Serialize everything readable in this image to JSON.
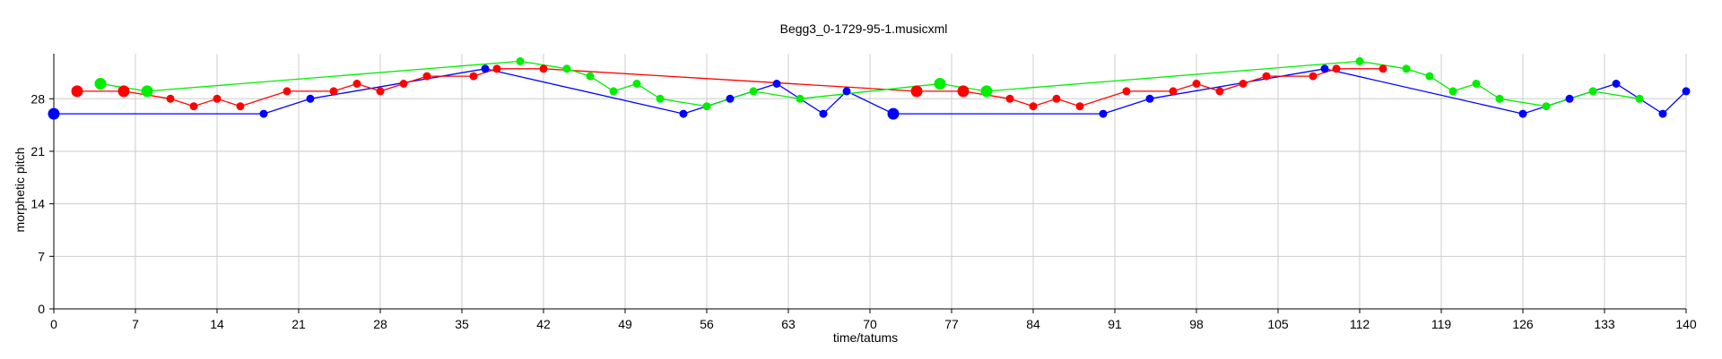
{
  "chart_data": {
    "type": "scatter",
    "title": "Begg3_0-1729-95-1.musicxml",
    "xlabel": "time/tatums",
    "ylabel": "morphetic pitch",
    "xlim": [
      0,
      140
    ],
    "ylim": [
      0,
      34
    ],
    "x_ticks": [
      0,
      7,
      14,
      21,
      28,
      35,
      42,
      49,
      56,
      63,
      70,
      77,
      84,
      91,
      98,
      105,
      112,
      119,
      126,
      133,
      140
    ],
    "y_ticks": [
      0,
      7,
      14,
      21,
      28
    ],
    "grid": true,
    "series": [
      {
        "color": "#0000ff",
        "points": [
          [
            0,
            26
          ],
          [
            18,
            26
          ],
          [
            22,
            28
          ],
          [
            37,
            32
          ],
          [
            54,
            26
          ],
          [
            58,
            28
          ],
          [
            62,
            30
          ],
          [
            66,
            26
          ],
          [
            68,
            29
          ],
          [
            72,
            26
          ],
          [
            90,
            26
          ],
          [
            94,
            28
          ],
          [
            109,
            32
          ],
          [
            126,
            26
          ],
          [
            130,
            28
          ],
          [
            134,
            30
          ],
          [
            138,
            26
          ],
          [
            140,
            29
          ]
        ],
        "big": [
          0,
          9
        ]
      },
      {
        "color": "#ff0000",
        "points": [
          [
            2,
            29
          ],
          [
            6,
            29
          ],
          [
            10,
            28
          ],
          [
            12,
            27
          ],
          [
            14,
            28
          ],
          [
            16,
            27
          ],
          [
            20,
            29
          ],
          [
            24,
            29
          ],
          [
            26,
            30
          ],
          [
            28,
            29
          ],
          [
            30,
            30
          ],
          [
            32,
            31
          ],
          [
            36,
            31
          ],
          [
            38,
            32
          ],
          [
            42,
            32
          ],
          [
            74,
            29
          ],
          [
            78,
            29
          ],
          [
            82,
            28
          ],
          [
            84,
            27
          ],
          [
            86,
            28
          ],
          [
            88,
            27
          ],
          [
            92,
            29
          ],
          [
            96,
            29
          ],
          [
            98,
            30
          ],
          [
            100,
            29
          ],
          [
            102,
            30
          ],
          [
            104,
            31
          ],
          [
            108,
            31
          ],
          [
            110,
            32
          ],
          [
            114,
            32
          ]
        ],
        "big": [
          0,
          1,
          15,
          16
        ]
      },
      {
        "color": "#00ee00",
        "points": [
          [
            4,
            30
          ],
          [
            8,
            29
          ],
          [
            40,
            33
          ],
          [
            44,
            32
          ],
          [
            46,
            31
          ],
          [
            48,
            29
          ],
          [
            50,
            30
          ],
          [
            52,
            28
          ],
          [
            56,
            27
          ],
          [
            60,
            29
          ],
          [
            64,
            28
          ],
          [
            76,
            30
          ],
          [
            80,
            29
          ],
          [
            112,
            33
          ],
          [
            116,
            32
          ],
          [
            118,
            31
          ],
          [
            120,
            29
          ],
          [
            122,
            30
          ],
          [
            124,
            28
          ],
          [
            128,
            27
          ],
          [
            132,
            29
          ],
          [
            136,
            28
          ]
        ],
        "big": [
          0,
          1,
          11,
          12
        ]
      }
    ]
  }
}
